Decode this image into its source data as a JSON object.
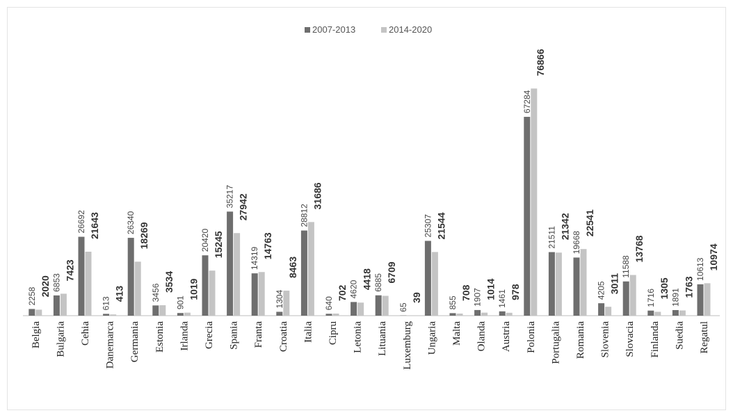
{
  "chart_data": {
    "type": "bar",
    "title": "",
    "xlabel": "",
    "ylabel": "",
    "ylim": [
      0,
      80000
    ],
    "grid": false,
    "legend": "top-center",
    "categories": [
      "Belgia",
      "Bulgaria",
      "Cehia",
      "Danemarca",
      "Germania",
      "Estonia",
      "Irlanda",
      "Grecia",
      "Spania",
      "Franta",
      "Croatia",
      "Italia",
      "Cipru",
      "Letonia",
      "Lituania",
      "Luxemburg",
      "Ungaria",
      "Malta",
      "Olanda",
      "Austria",
      "Polonia",
      "Portugalia",
      "Romania",
      "Slovenia",
      "Slovacia",
      "Finlanda",
      "Suedia",
      "Regatul"
    ],
    "series": [
      {
        "name": "2007-2013",
        "color": "#6e6e6e",
        "values": [
          2258,
          6853,
          26692,
          613,
          26340,
          3456,
          901,
          20420,
          35217,
          14319,
          1304,
          28812,
          640,
          4620,
          6885,
          65,
          25307,
          855,
          1907,
          1461,
          67284,
          21511,
          19668,
          4205,
          11588,
          1716,
          1891,
          10613
        ]
      },
      {
        "name": "2014-2020",
        "color": "#c4c4c4",
        "values": [
          2020,
          7423,
          21643,
          413,
          18269,
          3534,
          1019,
          15245,
          27942,
          14763,
          8463,
          31686,
          702,
          4418,
          6709,
          39,
          21544,
          708,
          1014,
          978,
          76866,
          21342,
          22541,
          3011,
          13768,
          1305,
          1763,
          10974
        ]
      }
    ]
  }
}
